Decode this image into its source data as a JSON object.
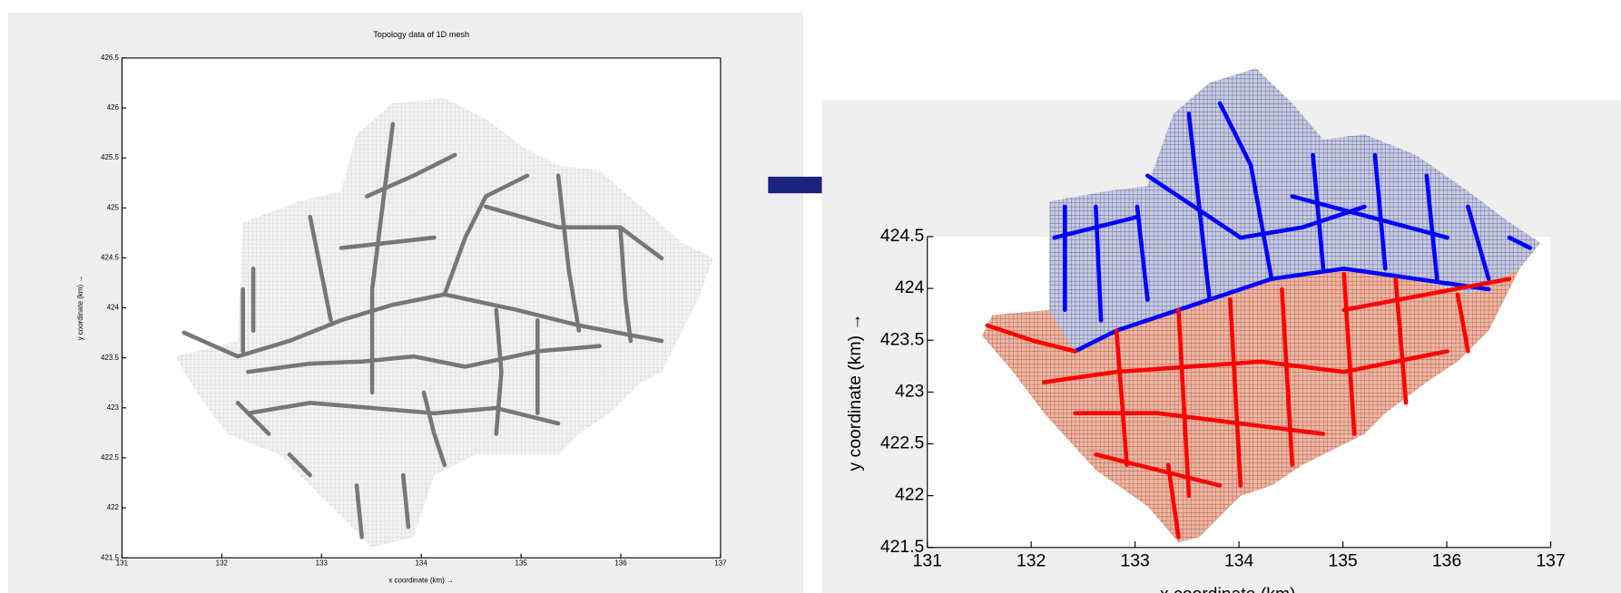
{
  "chart_data": [
    {
      "type": "network",
      "title": "Topology data of 1D mesh",
      "xlabel": "x coordinate (km) →",
      "ylabel": "y coordinate (km) →",
      "xlim": [
        131,
        137
      ],
      "ylim": [
        421.5,
        426.5
      ],
      "xticks": [
        131,
        132,
        133,
        134,
        135,
        136,
        137
      ],
      "yticks": [
        421.5,
        422,
        422.5,
        423,
        423.5,
        424,
        424.5,
        425,
        425.5,
        426,
        426.5
      ]
    },
    {
      "type": "network",
      "xlabel": "x coordinate (km) →",
      "ylabel": "y coordinate (km) →",
      "xlim": [
        131,
        137
      ],
      "ylim": [
        421.5,
        424.5
      ],
      "xticks": [
        131,
        132,
        133,
        134,
        135,
        136,
        137
      ],
      "yticks": [
        421.5,
        422,
        422.5,
        423,
        423.5,
        424,
        424.5
      ]
    }
  ]
}
